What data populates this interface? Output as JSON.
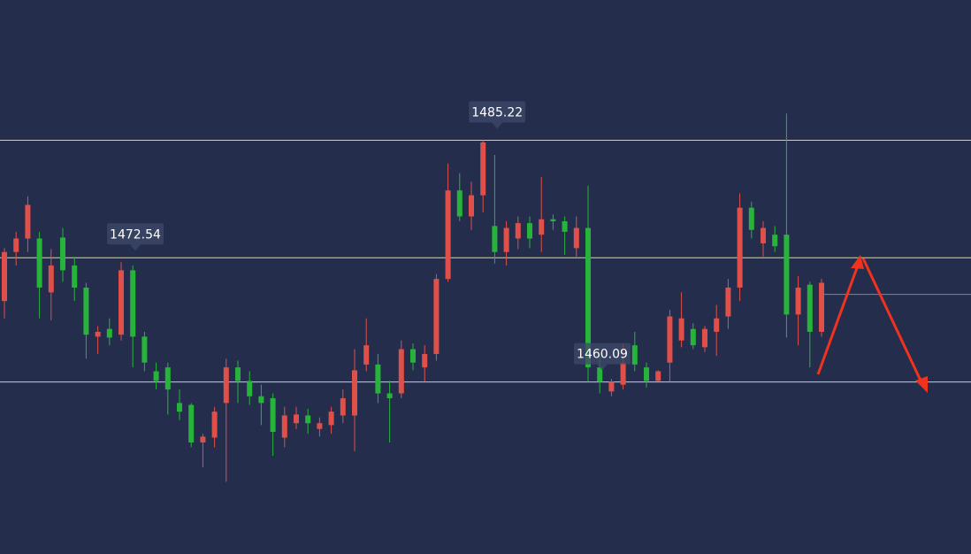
{
  "chart_data": {
    "type": "candlestick",
    "ylim": [
      1442.2,
      1499.8
    ],
    "up_color": "#e0504a",
    "down_color": "#27b43a",
    "ohlc": [
      [
        1468.5,
        1474.0,
        1466.7,
        1473.6
      ],
      [
        1473.6,
        1475.7,
        1472.2,
        1475.0
      ],
      [
        1475.0,
        1479.4,
        1473.6,
        1478.5
      ],
      [
        1475.0,
        1475.7,
        1466.7,
        1469.9
      ],
      [
        1469.4,
        1473.9,
        1466.5,
        1472.2
      ],
      [
        1475.1,
        1476.1,
        1470.5,
        1471.7
      ],
      [
        1472.2,
        1473.1,
        1468.5,
        1469.9
      ],
      [
        1469.9,
        1470.4,
        1462.5,
        1465.0
      ],
      [
        1464.8,
        1465.9,
        1463.0,
        1465.3
      ],
      [
        1465.6,
        1466.7,
        1463.9,
        1464.7
      ],
      [
        1465.0,
        1472.54,
        1464.4,
        1471.7
      ],
      [
        1471.7,
        1472.2,
        1461.6,
        1464.8
      ],
      [
        1464.8,
        1465.3,
        1461.2,
        1462.1
      ],
      [
        1461.2,
        1462.1,
        1459.3,
        1460.2
      ],
      [
        1461.6,
        1462.1,
        1456.7,
        1459.3
      ],
      [
        1457.9,
        1459.3,
        1456.1,
        1457.0
      ],
      [
        1457.7,
        1457.9,
        1453.3,
        1453.8
      ],
      [
        1453.8,
        1454.7,
        1451.2,
        1454.4
      ],
      [
        1454.3,
        1457.5,
        1453.3,
        1457.0
      ],
      [
        1457.9,
        1462.5,
        1449.7,
        1461.6
      ],
      [
        1461.6,
        1462.3,
        1457.9,
        1460.2
      ],
      [
        1460.2,
        1461.2,
        1457.7,
        1458.6
      ],
      [
        1458.6,
        1459.8,
        1455.6,
        1457.9
      ],
      [
        1458.4,
        1458.9,
        1452.4,
        1454.9
      ],
      [
        1454.3,
        1457.5,
        1453.3,
        1456.6
      ],
      [
        1455.8,
        1457.5,
        1455.2,
        1456.7
      ],
      [
        1456.6,
        1457.3,
        1454.7,
        1455.8
      ],
      [
        1455.2,
        1456.4,
        1454.4,
        1455.8
      ],
      [
        1455.6,
        1457.5,
        1454.7,
        1457.0
      ],
      [
        1456.6,
        1459.3,
        1455.8,
        1458.4
      ],
      [
        1456.6,
        1463.5,
        1452.9,
        1461.3
      ],
      [
        1461.9,
        1466.7,
        1461.2,
        1463.9
      ],
      [
        1461.9,
        1463.0,
        1457.9,
        1458.9
      ],
      [
        1458.9,
        1460.2,
        1453.8,
        1458.4
      ],
      [
        1458.9,
        1464.4,
        1458.4,
        1463.5
      ],
      [
        1463.5,
        1464.1,
        1461.3,
        1462.1
      ],
      [
        1461.6,
        1463.9,
        1460.1,
        1463.0
      ],
      [
        1463.0,
        1471.3,
        1462.3,
        1470.8
      ],
      [
        1470.8,
        1482.8,
        1470.5,
        1480.0
      ],
      [
        1480.0,
        1481.8,
        1476.8,
        1477.3
      ],
      [
        1477.3,
        1480.9,
        1475.9,
        1479.5
      ],
      [
        1479.5,
        1485.22,
        1477.7,
        1485.0
      ],
      [
        1476.3,
        1483.7,
        1472.4,
        1473.6
      ],
      [
        1473.6,
        1476.8,
        1472.2,
        1476.1
      ],
      [
        1475.0,
        1477.3,
        1473.9,
        1476.6
      ],
      [
        1476.6,
        1477.3,
        1474.0,
        1475.0
      ],
      [
        1475.4,
        1481.4,
        1473.6,
        1477.0
      ],
      [
        1477.0,
        1477.5,
        1475.9,
        1476.8
      ],
      [
        1476.8,
        1477.3,
        1473.3,
        1475.7
      ],
      [
        1474.0,
        1477.3,
        1473.1,
        1476.1
      ],
      [
        1476.1,
        1480.5,
        1460.09,
        1461.6
      ],
      [
        1461.6,
        1463.0,
        1458.9,
        1460.1
      ],
      [
        1459.1,
        1460.4,
        1458.6,
        1460.1
      ],
      [
        1459.8,
        1464.1,
        1459.3,
        1462.1
      ],
      [
        1463.9,
        1465.3,
        1461.2,
        1461.9
      ],
      [
        1461.6,
        1462.1,
        1459.5,
        1460.2
      ],
      [
        1460.2,
        1461.3,
        1460.1,
        1461.2
      ],
      [
        1462.1,
        1467.6,
        1460.1,
        1466.9
      ],
      [
        1464.4,
        1469.4,
        1463.7,
        1466.7
      ],
      [
        1465.6,
        1466.2,
        1463.5,
        1463.9
      ],
      [
        1463.7,
        1465.9,
        1463.2,
        1465.6
      ],
      [
        1465.3,
        1468.1,
        1462.8,
        1466.7
      ],
      [
        1466.9,
        1470.8,
        1465.6,
        1469.9
      ],
      [
        1469.9,
        1479.7,
        1468.5,
        1478.2
      ],
      [
        1478.2,
        1478.8,
        1475.0,
        1475.9
      ],
      [
        1474.5,
        1476.8,
        1473.1,
        1476.1
      ],
      [
        1475.4,
        1476.3,
        1473.6,
        1474.2
      ],
      [
        1475.4,
        1488.0,
        1464.7,
        1467.1
      ],
      [
        1467.1,
        1471.1,
        1463.9,
        1469.9
      ],
      [
        1470.2,
        1470.5,
        1461.6,
        1465.3
      ],
      [
        1465.3,
        1470.8,
        1464.8,
        1470.4
      ]
    ],
    "levels": [
      {
        "value": 1485.22,
        "color": "#c9cdd9"
      },
      {
        "value": 1473.0,
        "color": "#e6e04a"
      },
      {
        "value": 1460.09,
        "color": "#c9cdd9"
      }
    ],
    "current_price": 1469.2,
    "annotations": [
      1485.22,
      1472.54,
      1460.09
    ]
  }
}
